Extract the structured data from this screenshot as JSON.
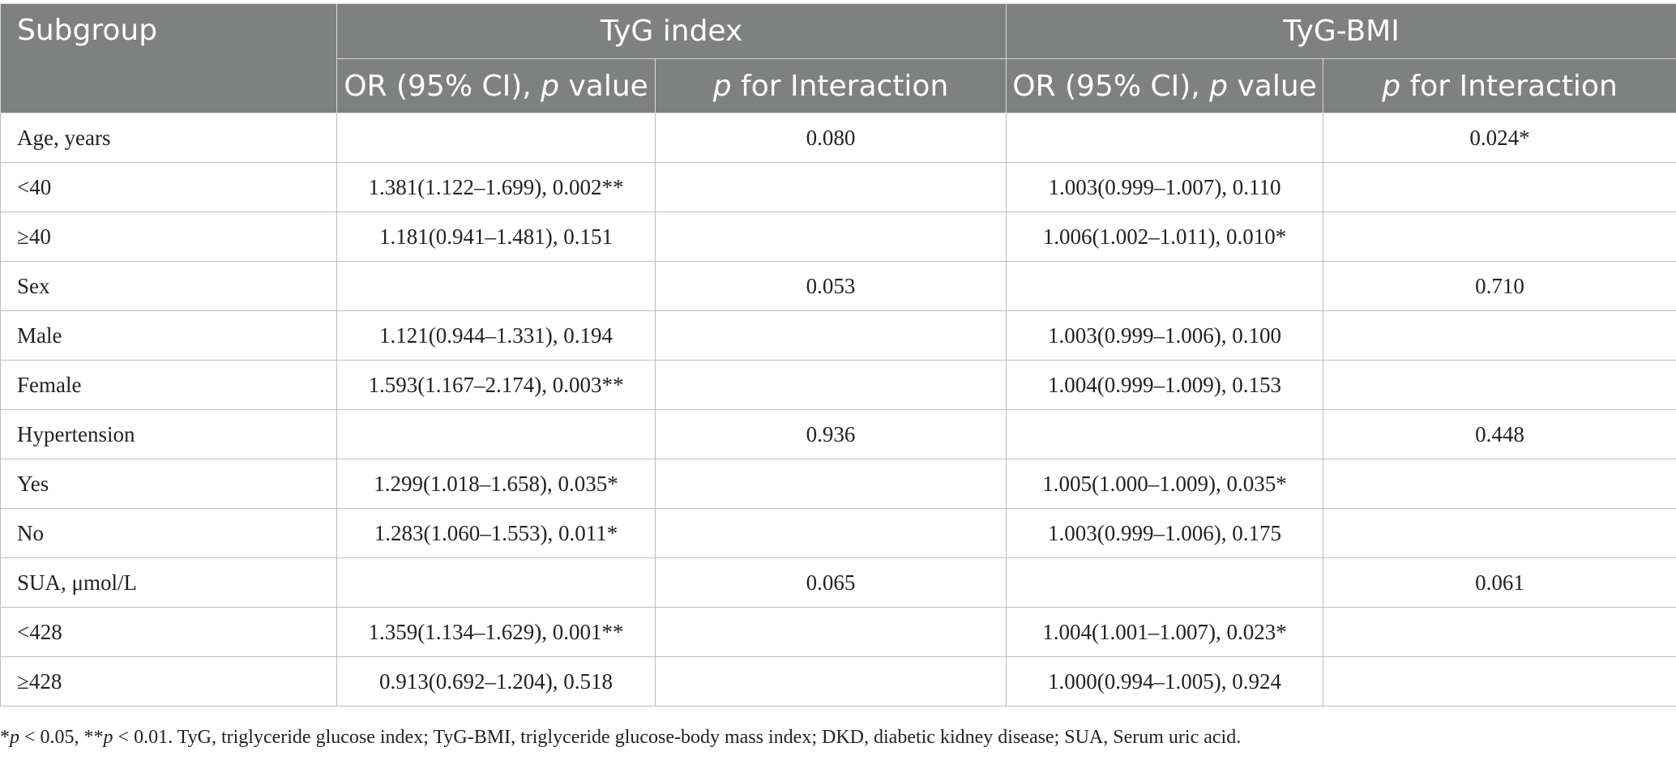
{
  "header": {
    "subgroup": "Subgroup",
    "tyg_index": "TyG index",
    "tyg_bmi": "TyG-BMI",
    "or_prefix": "OR (95% CI), ",
    "p_italic": "p",
    "or_suffix": " value",
    "interaction_suffix": " for Interaction"
  },
  "rows": [
    {
      "label": "Age, years",
      "tyg_or": "",
      "tyg_int": "0.080",
      "bmi_or": "",
      "bmi_int": "0.024*"
    },
    {
      "label": "<40",
      "tyg_or": "1.381(1.122–1.699), 0.002**",
      "tyg_int": "",
      "bmi_or": "1.003(0.999–1.007), 0.110",
      "bmi_int": ""
    },
    {
      "label": "≥40",
      "tyg_or": "1.181(0.941–1.481), 0.151",
      "tyg_int": "",
      "bmi_or": "1.006(1.002–1.011), 0.010*",
      "bmi_int": ""
    },
    {
      "label": "Sex",
      "tyg_or": "",
      "tyg_int": "0.053",
      "bmi_or": "",
      "bmi_int": "0.710"
    },
    {
      "label": "Male",
      "tyg_or": "1.121(0.944–1.331), 0.194",
      "tyg_int": "",
      "bmi_or": "1.003(0.999–1.006), 0.100",
      "bmi_int": ""
    },
    {
      "label": "Female",
      "tyg_or": "1.593(1.167–2.174), 0.003**",
      "tyg_int": "",
      "bmi_or": "1.004(0.999–1.009), 0.153",
      "bmi_int": ""
    },
    {
      "label": "Hypertension",
      "tyg_or": "",
      "tyg_int": "0.936",
      "bmi_or": "",
      "bmi_int": "0.448"
    },
    {
      "label": "Yes",
      "tyg_or": "1.299(1.018–1.658), 0.035*",
      "tyg_int": "",
      "bmi_or": "1.005(1.000–1.009), 0.035*",
      "bmi_int": ""
    },
    {
      "label": "No",
      "tyg_or": "1.283(1.060–1.553), 0.011*",
      "tyg_int": "",
      "bmi_or": "1.003(0.999–1.006), 0.175",
      "bmi_int": ""
    },
    {
      "label": "SUA, μmol/L",
      "tyg_or": "",
      "tyg_int": "0.065",
      "bmi_or": "",
      "bmi_int": "0.061"
    },
    {
      "label": "<428",
      "tyg_or": "1.359(1.134–1.629), 0.001**",
      "tyg_int": "",
      "bmi_or": "1.004(1.001–1.007), 0.023*",
      "bmi_int": ""
    },
    {
      "label": "≥428",
      "tyg_or": "0.913(0.692–1.204), 0.518",
      "tyg_int": "",
      "bmi_or": "1.000(0.994–1.005), 0.924",
      "bmi_int": ""
    }
  ],
  "footnote": {
    "star1": "*",
    "p1": "p",
    "t1": " < 0.05, **",
    "p2": "p",
    "t2": " < 0.01. TyG, triglyceride glucose index; TyG-BMI, triglyceride glucose-body mass index; DKD, diabetic kidney disease; SUA, Serum uric acid."
  }
}
